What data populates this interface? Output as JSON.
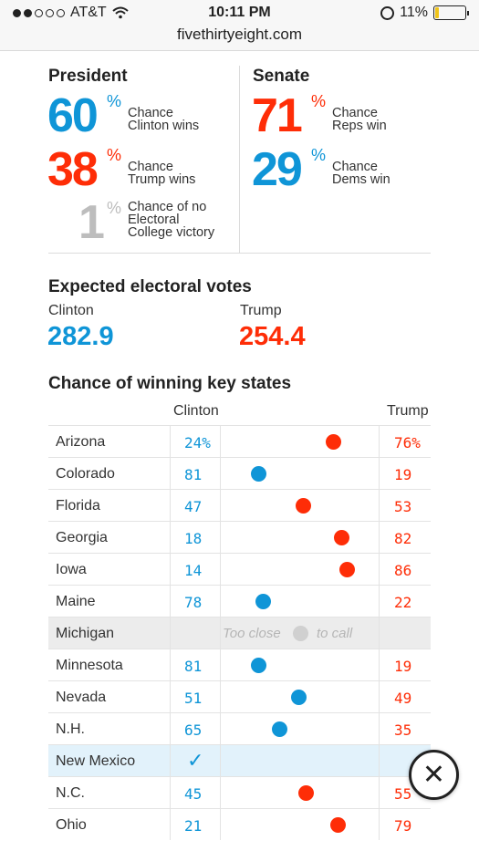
{
  "status_bar": {
    "carrier": "AT&T",
    "time": "10:11 PM",
    "battery": "11%",
    "battery_level": 0.11
  },
  "browser": {
    "url": "fivethirtyeight.com"
  },
  "president": {
    "heading": "President",
    "clinton": {
      "value": "60",
      "pct": "%",
      "note1": "Chance",
      "note2": "Clinton wins"
    },
    "trump": {
      "value": "38",
      "pct": "%",
      "note1": "Chance",
      "note2": "Trump wins"
    },
    "no_victory": {
      "value": "1",
      "pct": "%",
      "note1": "Chance of no",
      "note2": "Electoral",
      "note3": "College victory"
    }
  },
  "senate": {
    "heading": "Senate",
    "reps": {
      "value": "71",
      "pct": "%",
      "note1": "Chance",
      "note2": "Reps win"
    },
    "dems": {
      "value": "29",
      "pct": "%",
      "note1": "Chance",
      "note2": "Dems win"
    }
  },
  "electoral": {
    "heading": "Expected electoral votes",
    "clinton_label": "Clinton",
    "clinton_value": "282.9",
    "trump_label": "Trump",
    "trump_value": "254.4"
  },
  "key_states": {
    "heading": "Chance of winning key states",
    "clinton_col": "Clinton",
    "trump_col": "Trump",
    "tossup_left": "Too close",
    "tossup_right": "to call",
    "check_mark": "✓",
    "rows": [
      {
        "state": "Arizona",
        "clinton": "24%",
        "trump": "76%",
        "clinton_chance": 24,
        "status": "normal"
      },
      {
        "state": "Colorado",
        "clinton": "81",
        "trump": "19",
        "clinton_chance": 81,
        "status": "normal"
      },
      {
        "state": "Florida",
        "clinton": "47",
        "trump": "53",
        "clinton_chance": 47,
        "status": "normal"
      },
      {
        "state": "Georgia",
        "clinton": "18",
        "trump": "82",
        "clinton_chance": 18,
        "status": "normal"
      },
      {
        "state": "Iowa",
        "clinton": "14",
        "trump": "86",
        "clinton_chance": 14,
        "status": "normal"
      },
      {
        "state": "Maine",
        "clinton": "78",
        "trump": "22",
        "clinton_chance": 78,
        "status": "normal"
      },
      {
        "state": "Michigan",
        "clinton": "",
        "trump": "",
        "clinton_chance": 50,
        "status": "tossup"
      },
      {
        "state": "Minnesota",
        "clinton": "81",
        "trump": "19",
        "clinton_chance": 81,
        "status": "normal"
      },
      {
        "state": "Nevada",
        "clinton": "51",
        "trump": "49",
        "clinton_chance": 51,
        "status": "normal"
      },
      {
        "state": "N.H.",
        "clinton": "65",
        "trump": "35",
        "clinton_chance": 65,
        "status": "normal"
      },
      {
        "state": "New Mexico",
        "clinton": "",
        "trump": "",
        "clinton_chance": 100,
        "status": "called-clinton"
      },
      {
        "state": "N.C.",
        "clinton": "45",
        "trump": "55",
        "clinton_chance": 45,
        "status": "normal"
      },
      {
        "state": "Ohio",
        "clinton": "21",
        "trump": "79",
        "clinton_chance": 21,
        "status": "normal"
      }
    ]
  },
  "close_button": {
    "label": "✕"
  }
}
